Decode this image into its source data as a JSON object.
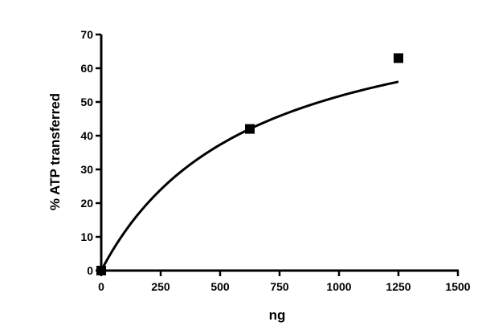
{
  "chart_data": {
    "type": "scatter",
    "title": "",
    "xlabel": "ng",
    "ylabel": "% ATP transferred",
    "xlim": [
      0,
      1500
    ],
    "ylim": [
      0,
      70
    ],
    "x_ticks": [
      0,
      250,
      500,
      750,
      1000,
      1250,
      1500
    ],
    "y_ticks": [
      0,
      10,
      20,
      30,
      40,
      50,
      60,
      70
    ],
    "grid": false,
    "legend": "none",
    "series": [
      {
        "points": [
          {
            "x": 0,
            "y": 0
          },
          {
            "x": 625,
            "y": 42
          },
          {
            "x": 1250,
            "y": 63
          }
        ],
        "marker": "square",
        "color": "#000000",
        "fit_curve": "smooth saturating curve through origin"
      }
    ]
  }
}
